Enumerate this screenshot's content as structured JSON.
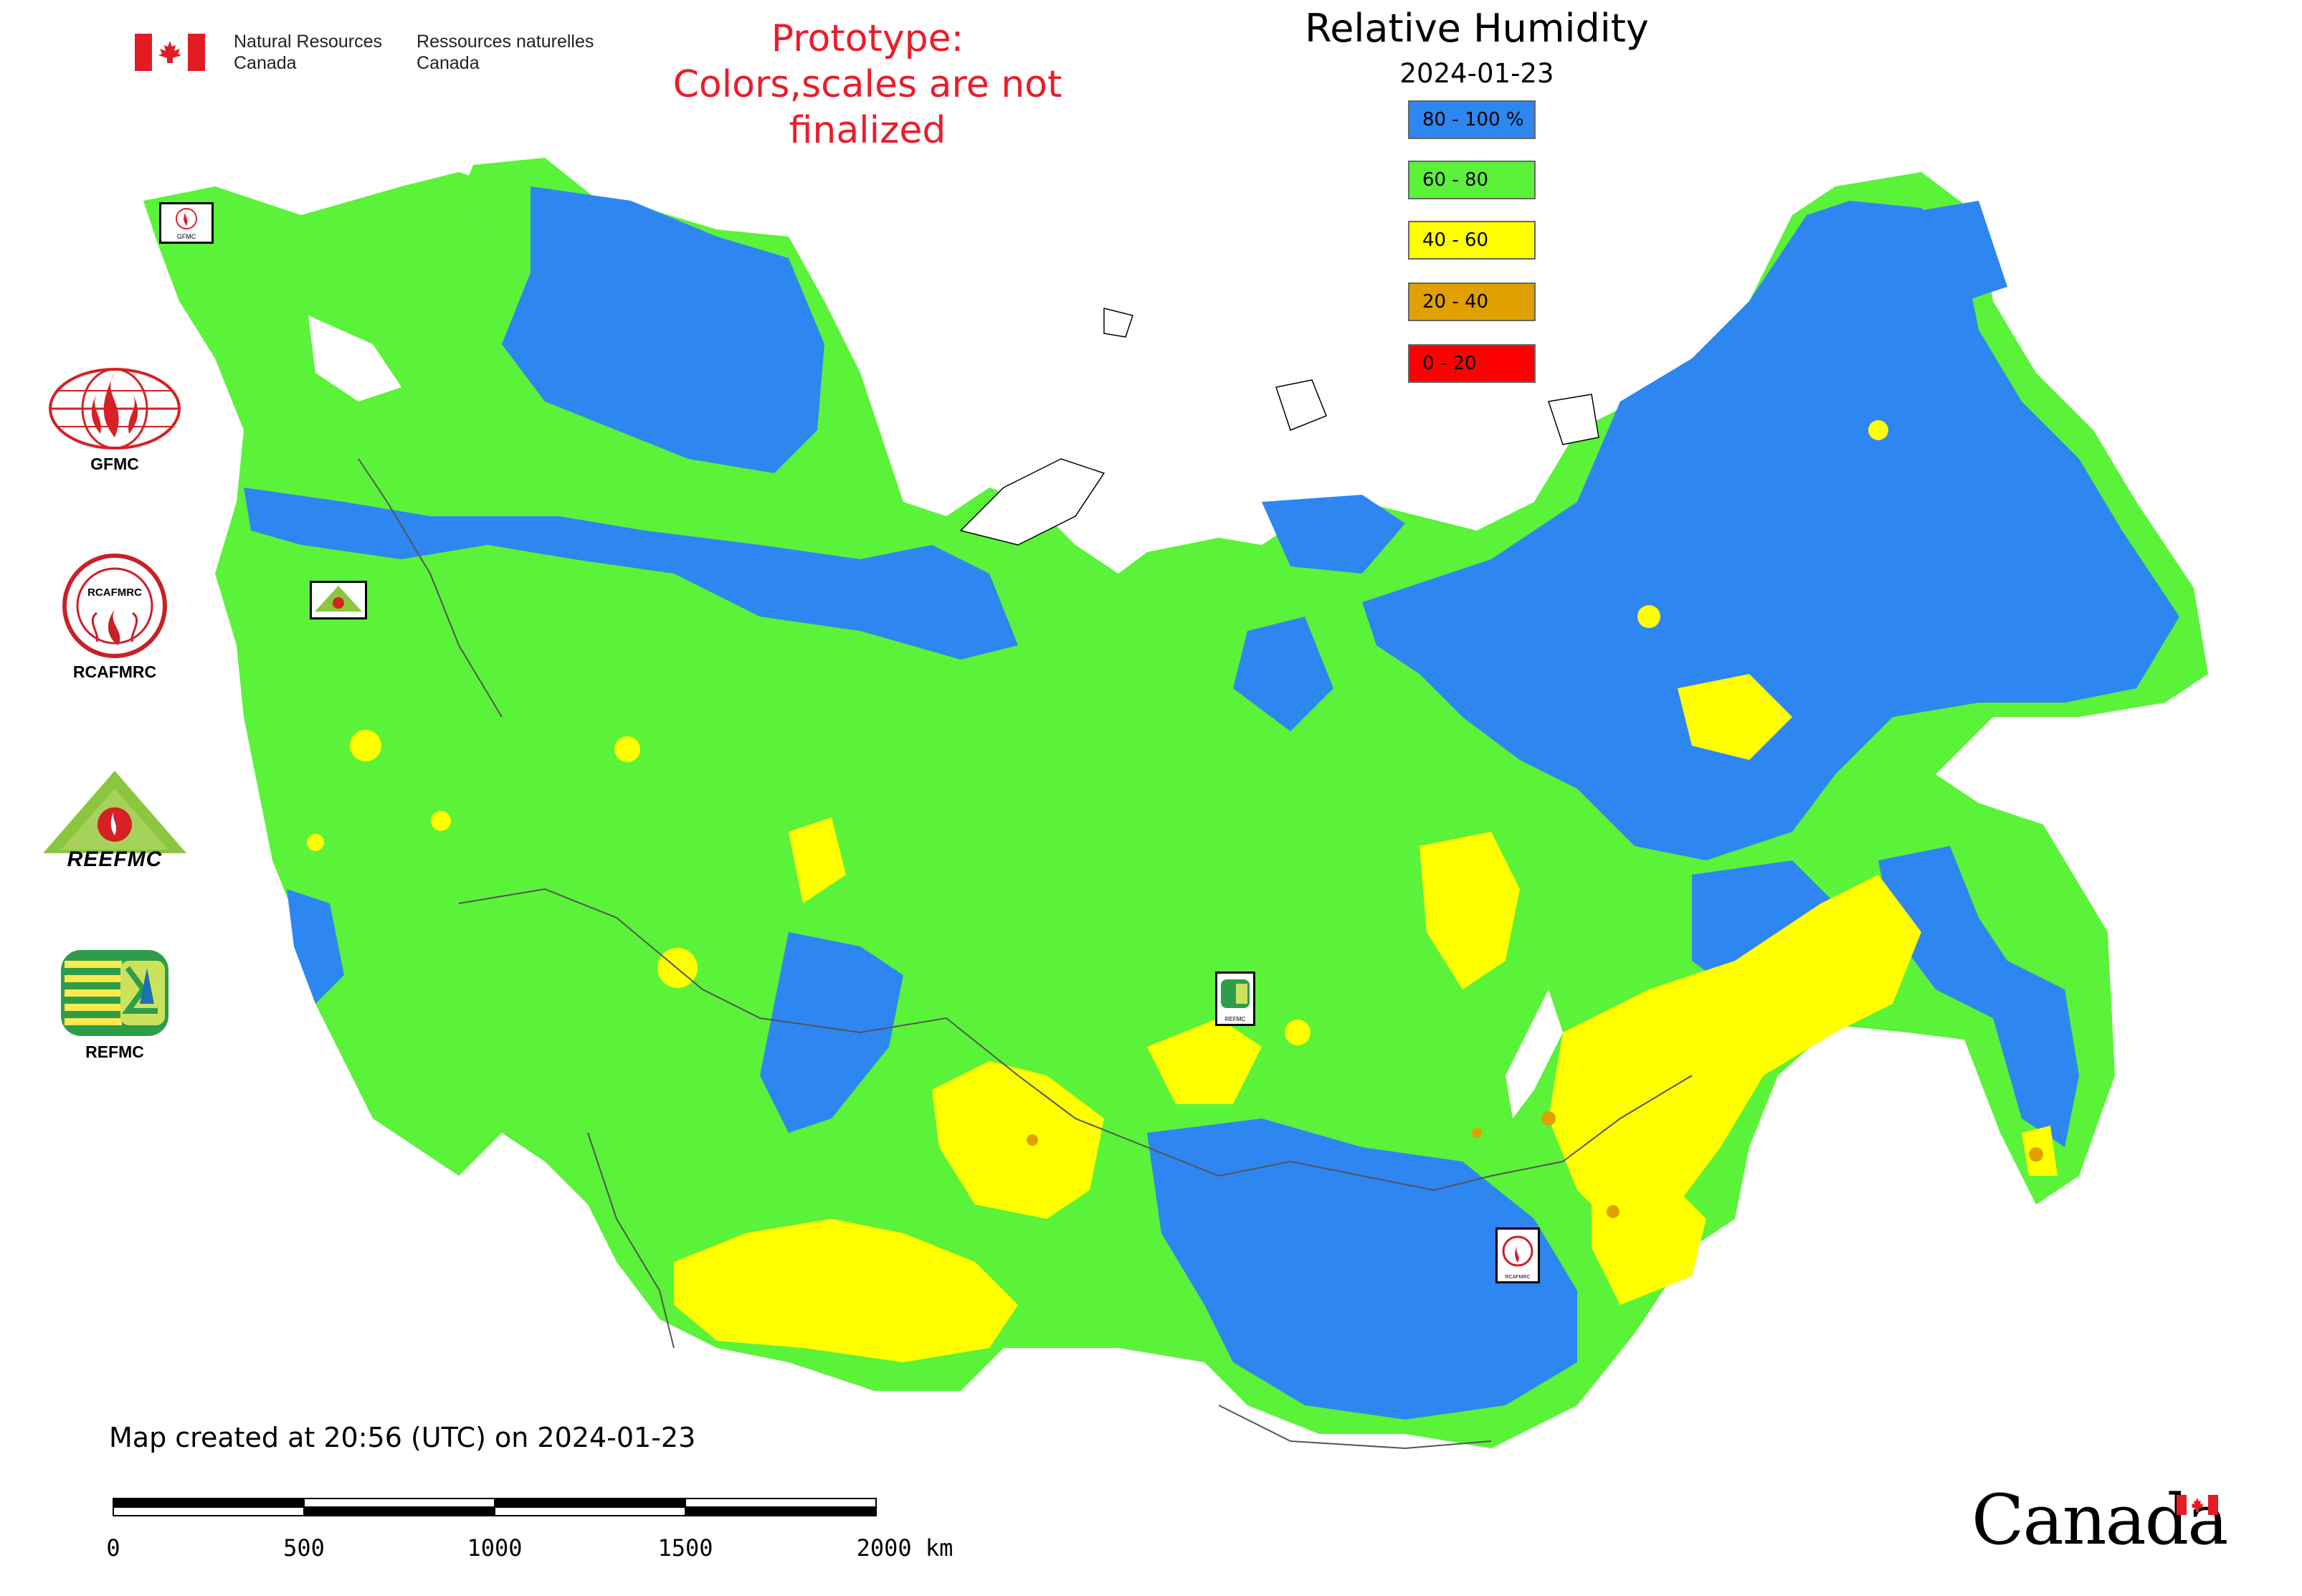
{
  "header": {
    "agency_en_line1": "Natural Resources",
    "agency_en_line2": "Canada",
    "agency_fr_line1": "Ressources naturelles",
    "agency_fr_line2": "Canada",
    "prototype_line1": "Prototype:",
    "prototype_line2": "Colors,scales are not finalized"
  },
  "map": {
    "title": "Relative Humidity",
    "date": "2024-01-23",
    "legend": [
      {
        "label": "80 - 100 %",
        "color": "#2e86f0"
      },
      {
        "label": "60 - 80",
        "color": "#5bf23a"
      },
      {
        "label": "40 - 60",
        "color": "#ffff00"
      },
      {
        "label": "20 - 40",
        "color": "#e0a000"
      },
      {
        "label": "0 - 20",
        "color": "#ff0000"
      }
    ],
    "created_note": "Map created at 20:56 (UTC) on 2024-01-23",
    "scale": {
      "ticks": [
        "0",
        "500",
        "1000",
        "1500",
        "2000 km"
      ]
    }
  },
  "logos": {
    "gfmc": "GFMC",
    "rcafmrc": "RCAFMRC",
    "reefmc": "REEFMC",
    "refmc": "REFMC",
    "reefmc_wordmark": "REEFMC",
    "gfmc_small": "GFMC",
    "rcafmrc_small": "RCAFMRC",
    "refmc_small": "REFMC"
  },
  "footer": {
    "wordmark": "Canada"
  }
}
